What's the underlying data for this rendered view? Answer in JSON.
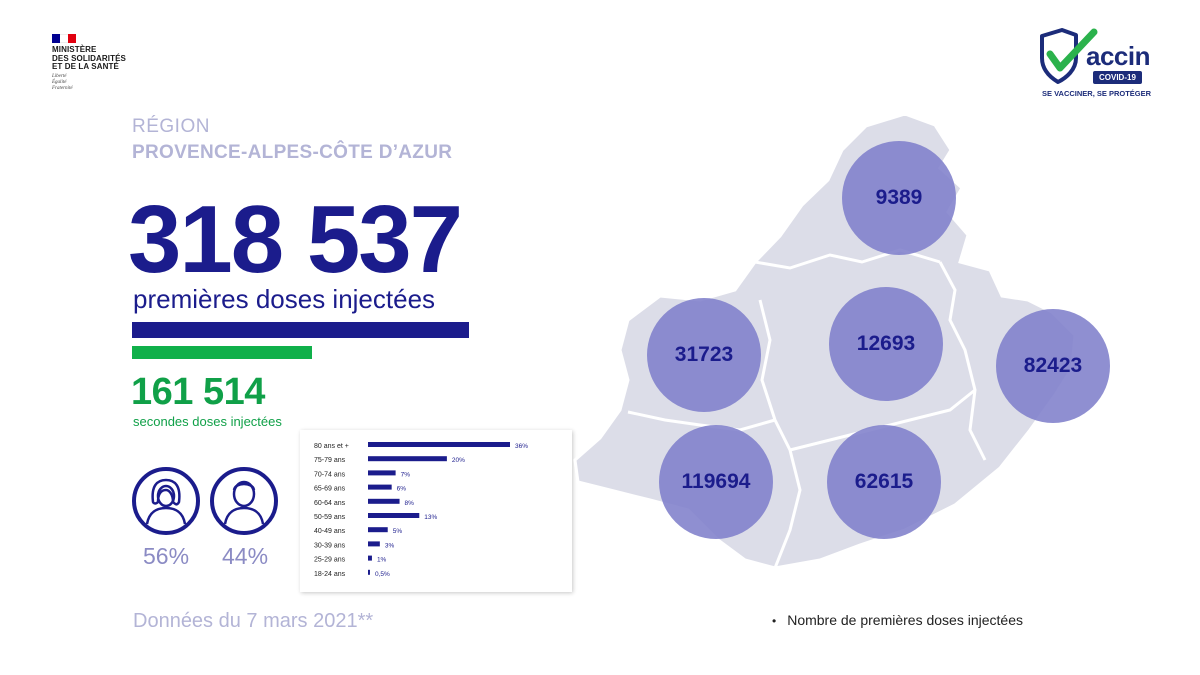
{
  "header": {
    "ministry_lines": [
      "MINISTÈRE",
      "DES SOLIDARITÉS",
      "ET DE LA SANTÉ"
    ],
    "motto_lines": [
      "Liberté",
      "Égalité",
      "Fraternité"
    ],
    "vaccine_logo": {
      "word": "accin",
      "badge": "COVID-19",
      "tagline": "SE VACCINER, SE PROTÉGER"
    }
  },
  "region": {
    "label": "RÉGION",
    "name": "PROVENCE-ALPES-CÔTE D’AZUR"
  },
  "first_doses": {
    "value": "318 537",
    "label": "premières doses injectées"
  },
  "second_doses": {
    "value": "161 514",
    "label": "secondes doses injectées"
  },
  "gender": {
    "female_pct": "56%",
    "male_pct": "44%",
    "female_icon": "woman-icon",
    "male_icon": "man-icon"
  },
  "date_text": "Données du 7 mars 2021**",
  "legend": {
    "bullet": "•",
    "text": "Nombre de premières doses injectées"
  },
  "colors": {
    "navy": "#1b1c8c",
    "green": "#10a048",
    "lavender": "#b3b4d6",
    "bubble": "#7f80cb",
    "map_fill": "#dcdde8"
  },
  "chart_data": [
    {
      "type": "bar",
      "orientation": "horizontal",
      "categories": [
        "80 ans et +",
        "75-79 ans",
        "70-74 ans",
        "65-69 ans",
        "60-64 ans",
        "50-59 ans",
        "40-49 ans",
        "30-39 ans",
        "25-29 ans",
        "18-24 ans"
      ],
      "values": [
        36,
        20,
        7,
        6,
        8,
        13,
        5,
        3,
        1,
        0.5
      ],
      "value_labels": [
        "36%",
        "20%",
        "7%",
        "6%",
        "8%",
        "13%",
        "5%",
        "3%",
        "1%",
        "0,5%"
      ],
      "xlim": [
        0,
        36
      ],
      "color": "#1b1c8c"
    },
    {
      "type": "bubble-map",
      "values": [
        9389,
        31723,
        12693,
        82423,
        119694,
        62615
      ],
      "value_labels": [
        "9389",
        "31723",
        "12693",
        "82423",
        "119694",
        "62615"
      ]
    }
  ]
}
